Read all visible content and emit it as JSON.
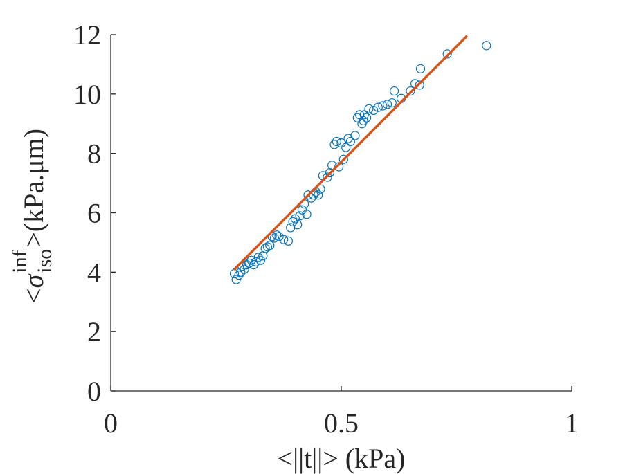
{
  "chart_data": {
    "type": "scatter",
    "xlabel": "<||t||> (kPa)",
    "ylabel_parts": [
      "<",
      "σ",
      "inf",
      "iso",
      ">(kPa.μm)"
    ],
    "xlim": [
      0,
      1
    ],
    "xticks": [
      0,
      0.5,
      1
    ],
    "ylim": [
      0,
      12
    ],
    "yticks": [
      0,
      2,
      4,
      6,
      8,
      10,
      12
    ],
    "series": [
      {
        "type": "scatter",
        "color": "#0072bd",
        "x": [
          0.268,
          0.272,
          0.278,
          0.282,
          0.285,
          0.29,
          0.295,
          0.3,
          0.305,
          0.31,
          0.315,
          0.32,
          0.325,
          0.33,
          0.335,
          0.34,
          0.345,
          0.35,
          0.355,
          0.36,
          0.365,
          0.375,
          0.385,
          0.39,
          0.395,
          0.4,
          0.405,
          0.41,
          0.415,
          0.42,
          0.425,
          0.428,
          0.435,
          0.44,
          0.445,
          0.45,
          0.455,
          0.46,
          0.47,
          0.475,
          0.48,
          0.485,
          0.49,
          0.495,
          0.5,
          0.505,
          0.51,
          0.515,
          0.52,
          0.53,
          0.535,
          0.54,
          0.545,
          0.548,
          0.55,
          0.555,
          0.56,
          0.57,
          0.58,
          0.59,
          0.6,
          0.61,
          0.615,
          0.63,
          0.65,
          0.66,
          0.67,
          0.672,
          0.73,
          0.815
        ],
        "values": [
          3.95,
          3.75,
          3.9,
          4.0,
          4.2,
          4.1,
          4.25,
          4.3,
          4.4,
          4.25,
          4.35,
          4.5,
          4.4,
          4.55,
          4.8,
          4.85,
          4.9,
          5.2,
          5.15,
          5.25,
          5.2,
          5.1,
          5.05,
          5.5,
          5.7,
          5.8,
          5.6,
          5.9,
          6.1,
          6.3,
          5.95,
          6.6,
          6.5,
          6.6,
          6.7,
          6.6,
          6.8,
          7.25,
          7.2,
          7.35,
          7.6,
          8.3,
          8.4,
          7.55,
          8.35,
          7.8,
          8.2,
          8.5,
          8.4,
          8.6,
          9.2,
          9.3,
          9.0,
          9.1,
          9.3,
          9.2,
          9.5,
          9.45,
          9.55,
          9.6,
          9.65,
          9.7,
          10.1,
          9.85,
          10.1,
          10.35,
          10.3,
          10.85,
          11.35,
          11.63
        ]
      },
      {
        "type": "line",
        "color": "#d95319",
        "x": [
          0.267,
          0.773
        ],
        "values": [
          4.08,
          11.96
        ]
      }
    ]
  }
}
